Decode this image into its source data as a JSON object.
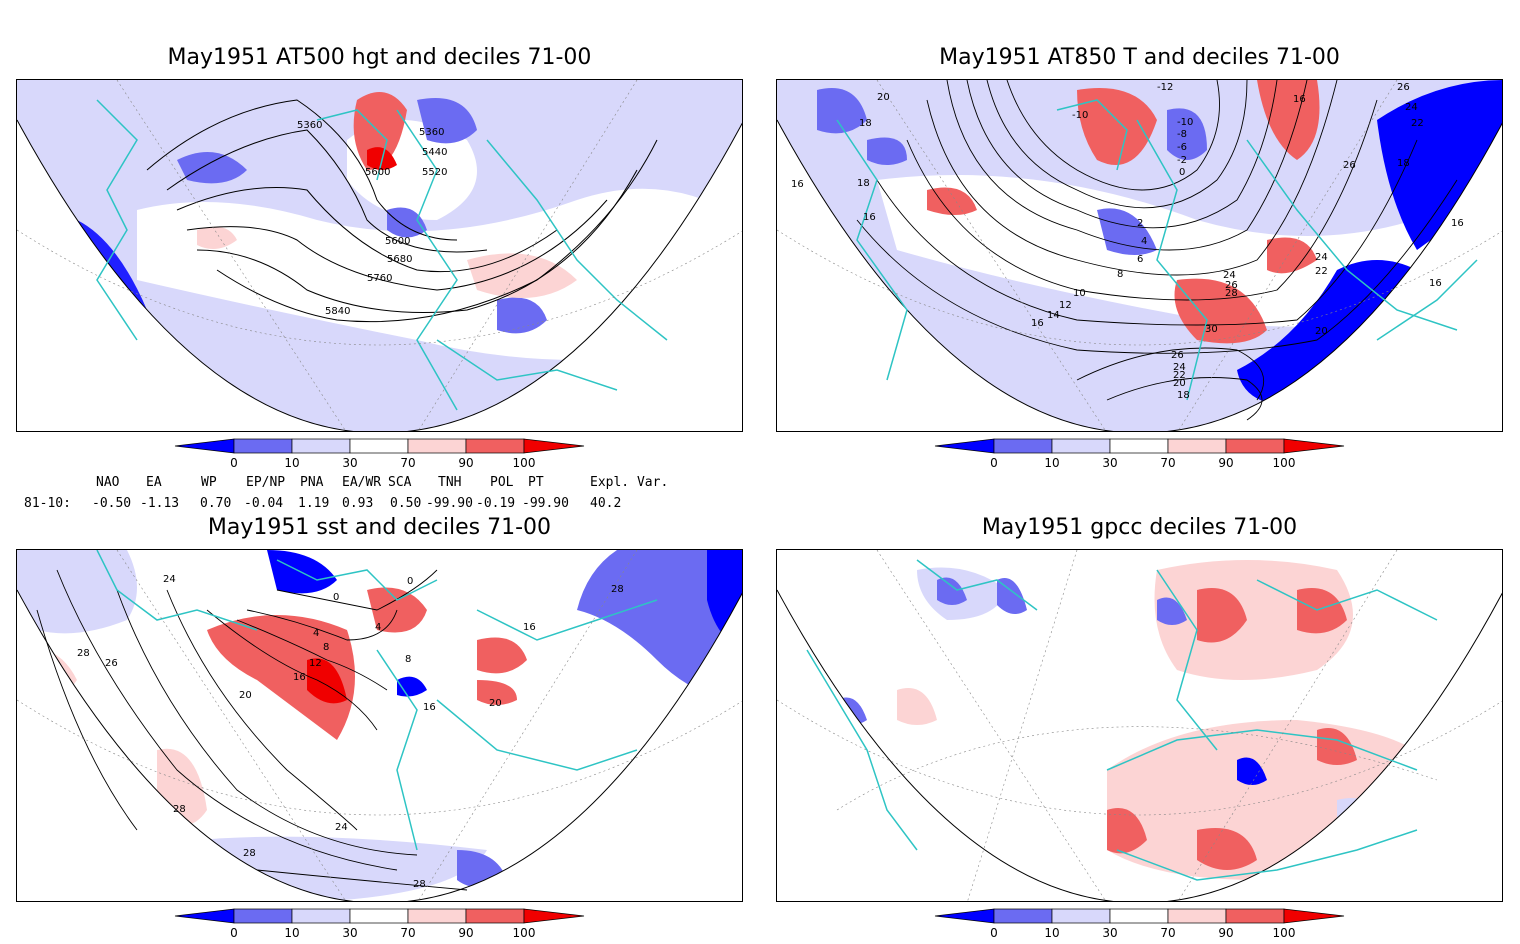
{
  "panels": [
    {
      "title": "May1951 AT500 hgt and deciles 71-00",
      "contour_labels": [
        "5360",
        "5360",
        "5440",
        "5520",
        "5600",
        "5600",
        "5680",
        "5760",
        "5840"
      ]
    },
    {
      "title": "May1951 AT850 T and deciles 71-00",
      "contour_labels": [
        "-12",
        "20",
        "18",
        "16",
        "18",
        "-10",
        "-10",
        "-8",
        "-6",
        "-2",
        "0",
        "2",
        "4",
        "6",
        "8",
        "10",
        "12",
        "14",
        "16",
        "16",
        "24",
        "26",
        "28",
        "30",
        "26",
        "24",
        "22",
        "20",
        "18",
        "16",
        "26",
        "24",
        "22",
        "26",
        "18",
        "16",
        "24",
        "22",
        "20",
        "16"
      ]
    },
    {
      "title": "May1951 sst and deciles 71-00",
      "contour_labels": [
        "24",
        "28",
        "26",
        "0",
        "0",
        "4",
        "4",
        "8",
        "12",
        "16",
        "20",
        "8",
        "16",
        "20",
        "16",
        "28",
        "28",
        "24",
        "28",
        "28"
      ]
    },
    {
      "title": "May1951 gpcc deciles 71-00",
      "contour_labels": []
    }
  ],
  "colorbar": {
    "ticks": [
      "0",
      "10",
      "30",
      "70",
      "90",
      "100"
    ],
    "colors": [
      "#0000ff",
      "#6b6bf2",
      "#d8d8fb",
      "#ffffff",
      "#fcd4d4",
      "#f06060",
      "#f00000"
    ]
  },
  "indices": {
    "headers": [
      "NAO",
      "EA",
      "WP",
      "EP/NP",
      "PNA",
      "EA/WR",
      "SCA",
      "TNH",
      "POL",
      "PT",
      "Expl. Var."
    ],
    "row_label": "81-10:",
    "values": [
      "-0.50",
      "-1.13",
      "0.70",
      "-0.04",
      "1.19",
      "0.93",
      "0.50",
      "-99.90",
      "-0.19",
      "-99.90",
      "40.2"
    ]
  }
}
